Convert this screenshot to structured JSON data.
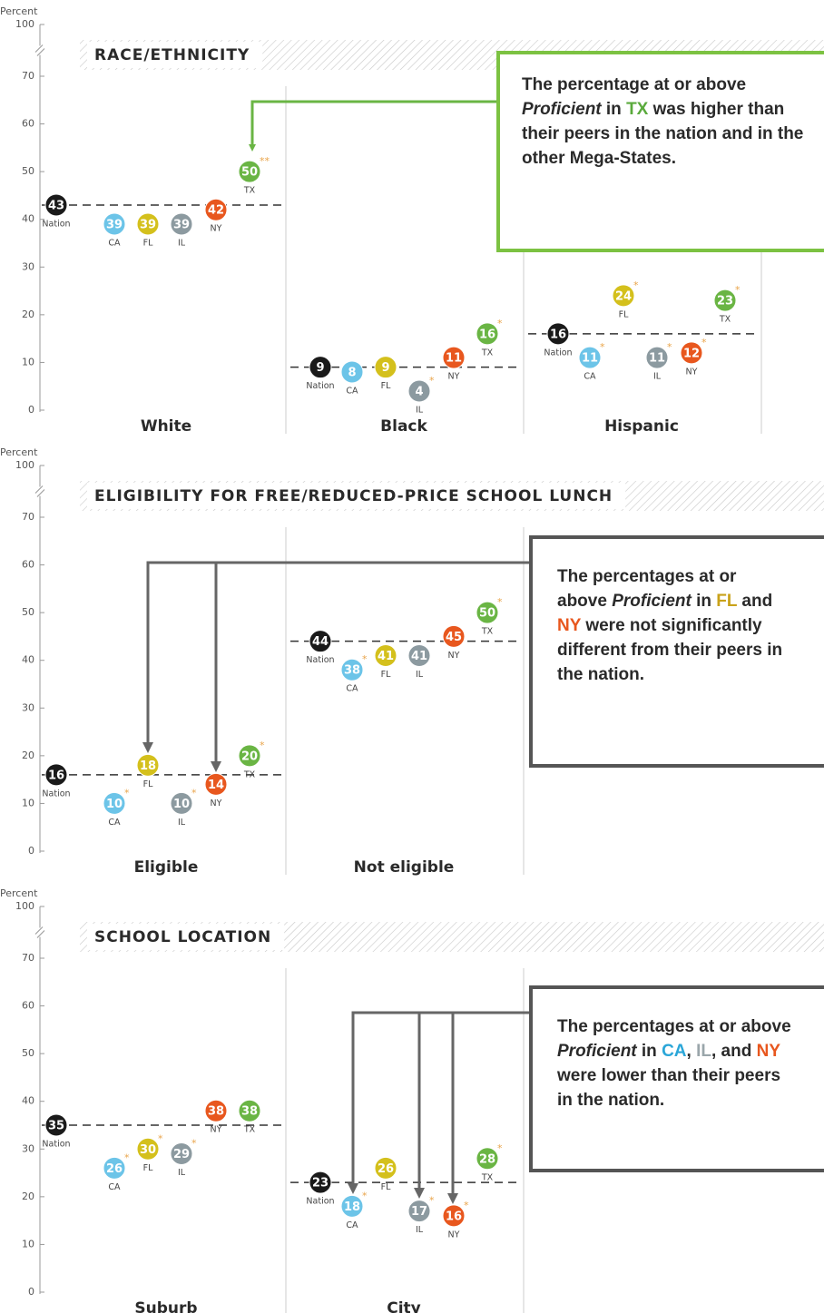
{
  "chart_data": [
    {
      "type": "dot",
      "title": "RACE/ETHNICITY",
      "y_label": "Percent",
      "ylim": [
        0,
        100
      ],
      "yticks": [
        0,
        10,
        20,
        30,
        40,
        50,
        60,
        70,
        100
      ],
      "axis_break": true,
      "categories": [
        "White",
        "Black",
        "Hispanic"
      ],
      "series": [
        {
          "name": "Nation",
          "color": "#1a1a1a",
          "values": [
            43,
            9,
            16
          ],
          "markers": [
            null,
            null,
            null
          ]
        },
        {
          "name": "CA",
          "color": "#6cc4e8",
          "values": [
            39,
            8,
            11
          ],
          "markers": [
            null,
            null,
            "*"
          ]
        },
        {
          "name": "FL",
          "color": "#d4c01c",
          "values": [
            39,
            9,
            24
          ],
          "markers": [
            null,
            null,
            "*"
          ]
        },
        {
          "name": "IL",
          "color": "#8c9aa0",
          "values": [
            39,
            4,
            11
          ],
          "markers": [
            null,
            "*",
            "*"
          ]
        },
        {
          "name": "NY",
          "color": "#e8571e",
          "values": [
            42,
            11,
            12
          ],
          "markers": [
            null,
            null,
            "*"
          ]
        },
        {
          "name": "TX",
          "color": "#6ab544",
          "values": [
            50,
            16,
            23
          ],
          "markers": [
            "**",
            "*",
            "*"
          ]
        }
      ],
      "callout": {
        "border_color": "#7cc242",
        "runs": [
          {
            "text": "The percentage at or above "
          },
          {
            "text": "Proficient",
            "italic": true
          },
          {
            "text": " in "
          },
          {
            "text": "TX",
            "color": "#5aaa3c"
          },
          {
            "text": " was higher than their peers in the nation and in the other Mega-States."
          }
        ]
      }
    },
    {
      "type": "dot",
      "title": "ELIGIBILITY FOR FREE/REDUCED-PRICE SCHOOL LUNCH",
      "y_label": "Percent",
      "ylim": [
        0,
        100
      ],
      "yticks": [
        0,
        10,
        20,
        30,
        40,
        50,
        60,
        70,
        100
      ],
      "axis_break": true,
      "categories": [
        "Eligible",
        "Not eligible"
      ],
      "series": [
        {
          "name": "Nation",
          "color": "#1a1a1a",
          "values": [
            16,
            44
          ],
          "markers": [
            null,
            null
          ]
        },
        {
          "name": "CA",
          "color": "#6cc4e8",
          "values": [
            10,
            38
          ],
          "markers": [
            "*",
            "*"
          ]
        },
        {
          "name": "FL",
          "color": "#d4c01c",
          "values": [
            18,
            41
          ],
          "markers": [
            null,
            null
          ]
        },
        {
          "name": "IL",
          "color": "#8c9aa0",
          "values": [
            10,
            41
          ],
          "markers": [
            "*",
            null
          ]
        },
        {
          "name": "NY",
          "color": "#e8571e",
          "values": [
            14,
            45
          ],
          "markers": [
            null,
            null
          ]
        },
        {
          "name": "TX",
          "color": "#6ab544",
          "values": [
            20,
            50
          ],
          "markers": [
            "*",
            "*"
          ]
        }
      ],
      "callout": {
        "border_color": "#555555",
        "runs": [
          {
            "text": "The percentages at or above "
          },
          {
            "text": "Proficient",
            "italic": true
          },
          {
            "text": " in "
          },
          {
            "text": "FL",
            "color": "#c9a21a"
          },
          {
            "text": " and "
          },
          {
            "text": "NY",
            "color": "#e8571e"
          },
          {
            "text": " were not significantly different from their peers in the nation."
          }
        ]
      }
    },
    {
      "type": "dot",
      "title": "SCHOOL LOCATION",
      "y_label": "Percent",
      "ylim": [
        0,
        100
      ],
      "yticks": [
        0,
        10,
        20,
        30,
        40,
        50,
        60,
        70,
        100
      ],
      "axis_break": true,
      "categories": [
        "Suburb",
        "City"
      ],
      "series": [
        {
          "name": "Nation",
          "color": "#1a1a1a",
          "values": [
            35,
            23
          ],
          "markers": [
            null,
            null
          ]
        },
        {
          "name": "CA",
          "color": "#6cc4e8",
          "values": [
            26,
            18
          ],
          "markers": [
            "*",
            "*"
          ]
        },
        {
          "name": "FL",
          "color": "#d4c01c",
          "values": [
            30,
            26
          ],
          "markers": [
            "*",
            null
          ]
        },
        {
          "name": "IL",
          "color": "#8c9aa0",
          "values": [
            29,
            17
          ],
          "markers": [
            "*",
            "*"
          ]
        },
        {
          "name": "NY",
          "color": "#e8571e",
          "values": [
            38,
            16
          ],
          "markers": [
            null,
            "*"
          ]
        },
        {
          "name": "TX",
          "color": "#6ab544",
          "values": [
            38,
            28
          ],
          "markers": [
            null,
            "*"
          ]
        }
      ],
      "callout": {
        "border_color": "#555555",
        "runs": [
          {
            "text": "The percentages at or above "
          },
          {
            "text": "Proficient",
            "italic": true
          },
          {
            "text": " in "
          },
          {
            "text": "CA",
            "color": "#2aa6d8"
          },
          {
            "text": ", "
          },
          {
            "text": "IL",
            "color": "#9aa6aa"
          },
          {
            "text": ", and "
          },
          {
            "text": "NY",
            "color": "#e8571e"
          },
          {
            "text": " were lower than their peers in the nation."
          }
        ]
      }
    }
  ]
}
